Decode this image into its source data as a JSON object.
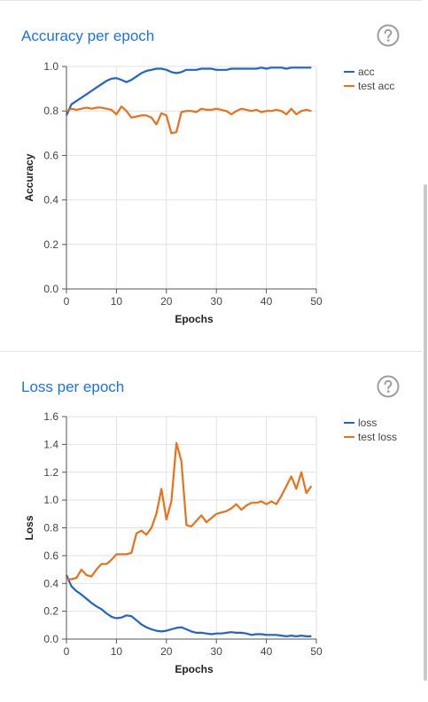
{
  "cards": [
    {
      "title": "Accuracy per epoch",
      "help_icon": "help-circle-icon"
    },
    {
      "title": "Loss per epoch",
      "help_icon": "help-circle-icon"
    }
  ],
  "chart_data": [
    {
      "type": "line",
      "title": "Accuracy per epoch",
      "xlabel": "Epochs",
      "ylabel": "Accuracy",
      "xlim": [
        0,
        50
      ],
      "ylim": [
        0,
        1.0
      ],
      "x_ticks": [
        0,
        10,
        20,
        30,
        40,
        50
      ],
      "y_ticks": [
        0.0,
        0.2,
        0.4,
        0.6,
        0.8,
        1.0
      ],
      "y_tick_labels": [
        "0.0",
        "0.2",
        "0.4",
        "0.6",
        "0.8",
        "1.0"
      ],
      "grid": true,
      "legend_position": "right",
      "x": [
        0,
        1,
        2,
        3,
        4,
        5,
        6,
        7,
        8,
        9,
        10,
        11,
        12,
        13,
        14,
        15,
        16,
        17,
        18,
        19,
        20,
        21,
        22,
        23,
        24,
        25,
        26,
        27,
        28,
        29,
        30,
        31,
        32,
        33,
        34,
        35,
        36,
        37,
        38,
        39,
        40,
        41,
        42,
        43,
        44,
        45,
        46,
        47,
        48,
        49
      ],
      "series": [
        {
          "name": "acc",
          "color": "#1f65c9",
          "values": [
            0.78,
            0.83,
            0.845,
            0.86,
            0.875,
            0.89,
            0.905,
            0.92,
            0.935,
            0.945,
            0.948,
            0.94,
            0.93,
            0.94,
            0.955,
            0.97,
            0.98,
            0.985,
            0.99,
            0.99,
            0.985,
            0.975,
            0.97,
            0.975,
            0.985,
            0.985,
            0.985,
            0.99,
            0.99,
            0.99,
            0.985,
            0.985,
            0.985,
            0.99,
            0.99,
            0.99,
            0.99,
            0.99,
            0.99,
            0.995,
            0.99,
            0.995,
            0.995,
            0.995,
            0.99,
            0.995,
            0.995,
            0.995,
            0.995,
            0.995
          ]
        },
        {
          "name": "test acc",
          "color": "#e8711a",
          "values": [
            0.8,
            0.81,
            0.805,
            0.81,
            0.815,
            0.81,
            0.815,
            0.815,
            0.81,
            0.805,
            0.785,
            0.82,
            0.8,
            0.77,
            0.775,
            0.78,
            0.78,
            0.77,
            0.74,
            0.79,
            0.78,
            0.7,
            0.705,
            0.795,
            0.8,
            0.8,
            0.795,
            0.81,
            0.805,
            0.805,
            0.81,
            0.805,
            0.8,
            0.785,
            0.8,
            0.81,
            0.805,
            0.8,
            0.805,
            0.795,
            0.8,
            0.8,
            0.805,
            0.8,
            0.785,
            0.81,
            0.785,
            0.8,
            0.805,
            0.8
          ]
        }
      ]
    },
    {
      "type": "line",
      "title": "Loss per epoch",
      "xlabel": "Epochs",
      "ylabel": "Loss",
      "xlim": [
        0,
        50
      ],
      "ylim": [
        0,
        1.6
      ],
      "x_ticks": [
        0,
        10,
        20,
        30,
        40,
        50
      ],
      "y_ticks": [
        0.0,
        0.2,
        0.4,
        0.6,
        0.8,
        1.0,
        1.2,
        1.4,
        1.6
      ],
      "y_tick_labels": [
        "0.0",
        "0.2",
        "0.4",
        "0.6",
        "0.8",
        "1.0",
        "1.2",
        "1.4",
        "1.6"
      ],
      "grid": true,
      "legend_position": "right",
      "x": [
        0,
        1,
        2,
        3,
        4,
        5,
        6,
        7,
        8,
        9,
        10,
        11,
        12,
        13,
        14,
        15,
        16,
        17,
        18,
        19,
        20,
        21,
        22,
        23,
        24,
        25,
        26,
        27,
        28,
        29,
        30,
        31,
        32,
        33,
        34,
        35,
        36,
        37,
        38,
        39,
        40,
        41,
        42,
        43,
        44,
        45,
        46,
        47,
        48,
        49
      ],
      "series": [
        {
          "name": "loss",
          "color": "#1f65c9",
          "values": [
            0.46,
            0.38,
            0.345,
            0.32,
            0.29,
            0.26,
            0.235,
            0.215,
            0.185,
            0.16,
            0.15,
            0.155,
            0.17,
            0.165,
            0.135,
            0.105,
            0.085,
            0.07,
            0.06,
            0.055,
            0.06,
            0.07,
            0.08,
            0.085,
            0.07,
            0.055,
            0.045,
            0.045,
            0.04,
            0.035,
            0.04,
            0.04,
            0.045,
            0.05,
            0.045,
            0.045,
            0.04,
            0.03,
            0.035,
            0.035,
            0.03,
            0.03,
            0.03,
            0.025,
            0.02,
            0.025,
            0.02,
            0.025,
            0.02,
            0.02
          ]
        },
        {
          "name": "test loss",
          "color": "#e8711a",
          "values": [
            0.43,
            0.43,
            0.44,
            0.5,
            0.46,
            0.45,
            0.5,
            0.54,
            0.54,
            0.57,
            0.61,
            0.61,
            0.61,
            0.62,
            0.76,
            0.78,
            0.75,
            0.8,
            0.9,
            1.08,
            0.86,
            0.99,
            1.41,
            1.28,
            0.82,
            0.81,
            0.85,
            0.89,
            0.84,
            0.87,
            0.9,
            0.91,
            0.92,
            0.94,
            0.97,
            0.93,
            0.96,
            0.98,
            0.98,
            0.99,
            0.97,
            0.99,
            0.97,
            1.03,
            1.1,
            1.17,
            1.08,
            1.2,
            1.05,
            1.1
          ]
        }
      ]
    }
  ]
}
